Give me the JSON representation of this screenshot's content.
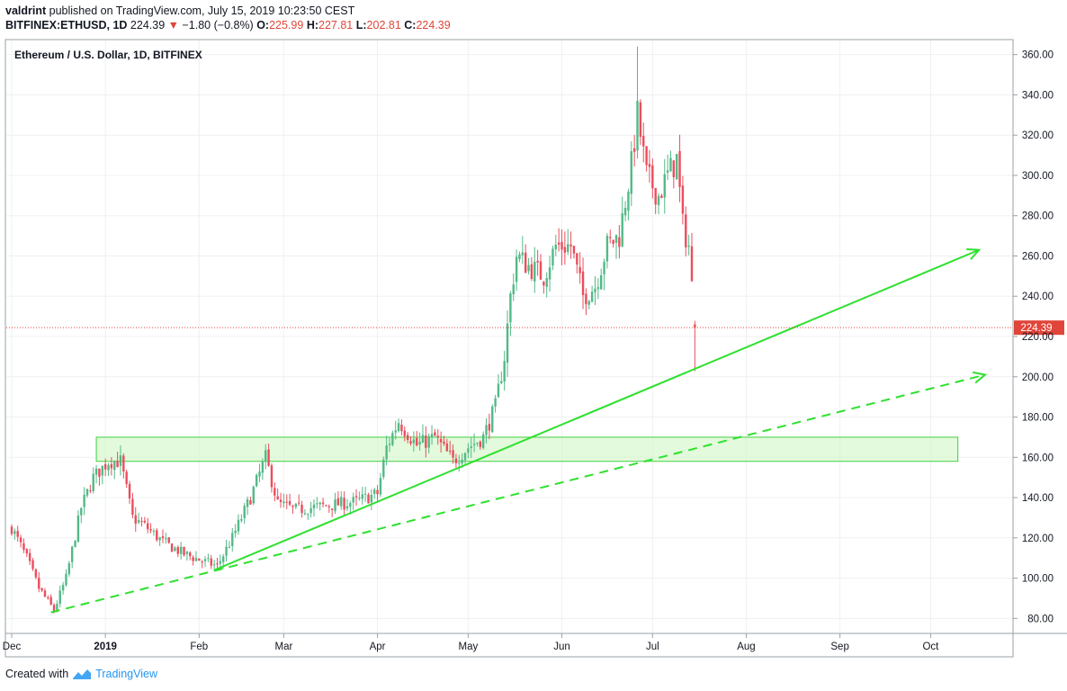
{
  "header": {
    "author": "valdrint",
    "published_text": "published on TradingView.com, July 15, 2019 10:23:50 CEST",
    "symbol": "BITFINEX:ETHUSD, 1D",
    "last": "224.39",
    "arrow": "▼",
    "change": "−1.80 (−0.8%)",
    "o_label": "O:",
    "o_value": "225.99",
    "h_label": "H:",
    "h_value": "227.81",
    "l_label": "L:",
    "l_value": "202.81",
    "c_label": "C:",
    "c_value": "224.39"
  },
  "footer": {
    "created_with": "Created with",
    "brand": "TradingView"
  },
  "chart_data": {
    "type": "candlestick",
    "title": "Ethereum / U.S. Dollar, 1D, BITFINEX",
    "ylim": [
      73,
      367
    ],
    "y_ticks": [
      80,
      100,
      120,
      140,
      160,
      180,
      200,
      220,
      240,
      260,
      280,
      300,
      320,
      340,
      360
    ],
    "x_labels": [
      {
        "label": "Dec",
        "date": "2018-12-01"
      },
      {
        "label": "2019",
        "date": "2019-01-01"
      },
      {
        "label": "Feb",
        "date": "2019-02-01"
      },
      {
        "label": "Mar",
        "date": "2019-03-01"
      },
      {
        "label": "Apr",
        "date": "2019-04-01"
      },
      {
        "label": "May",
        "date": "2019-05-01"
      },
      {
        "label": "Jun",
        "date": "2019-06-01"
      },
      {
        "label": "Jul",
        "date": "2019-07-01"
      },
      {
        "label": "Aug",
        "date": "2019-08-01"
      },
      {
        "label": "Sep",
        "date": "2019-09-01"
      },
      {
        "label": "Oct",
        "date": "2019-10-01"
      }
    ],
    "current_price": {
      "value": 224.39,
      "label": "224.39"
    },
    "colors": {
      "up": "#53b987",
      "down": "#eb4d5c",
      "trend": "#2ee02e",
      "zone_fill": "#d4f7c9",
      "zone_stroke": "#40d040",
      "price_line": "#e0453a"
    },
    "support_zone": {
      "y_low": 158,
      "y_high": 170,
      "x_start": "2018-12-29",
      "x_end": "2019-10-10"
    },
    "trendlines": [
      {
        "style": "solid",
        "arrow": true,
        "start": {
          "date": "2019-02-06",
          "price": 104
        },
        "end": {
          "date": "2019-10-17",
          "price": 263
        }
      },
      {
        "style": "dashed",
        "arrow": true,
        "start": {
          "date": "2018-12-14",
          "price": 83
        },
        "end": {
          "date": "2019-10-19",
          "price": 201
        }
      }
    ],
    "anchors": [
      [
        "2018-12-01",
        125
      ],
      [
        "2018-12-06",
        110
      ],
      [
        "2018-12-10",
        95
      ],
      [
        "2018-12-15",
        84
      ],
      [
        "2018-12-19",
        100
      ],
      [
        "2018-12-24",
        135
      ],
      [
        "2018-12-28",
        150
      ],
      [
        "2019-01-02",
        158
      ],
      [
        "2019-01-06",
        158
      ],
      [
        "2019-01-10",
        130
      ],
      [
        "2019-01-14",
        126
      ],
      [
        "2019-01-20",
        118
      ],
      [
        "2019-01-27",
        112
      ],
      [
        "2019-02-03",
        108
      ],
      [
        "2019-02-07",
        106
      ],
      [
        "2019-02-12",
        120
      ],
      [
        "2019-02-18",
        140
      ],
      [
        "2019-02-23",
        160
      ],
      [
        "2019-02-27",
        137
      ],
      [
        "2019-03-05",
        134
      ],
      [
        "2019-03-15",
        136
      ],
      [
        "2019-03-25",
        138
      ],
      [
        "2019-04-01",
        142
      ],
      [
        "2019-04-04",
        165
      ],
      [
        "2019-04-08",
        178
      ],
      [
        "2019-04-14",
        166
      ],
      [
        "2019-04-20",
        170
      ],
      [
        "2019-04-26",
        158
      ],
      [
        "2019-05-01",
        165
      ],
      [
        "2019-05-06",
        170
      ],
      [
        "2019-05-10",
        185
      ],
      [
        "2019-05-13",
        210
      ],
      [
        "2019-05-15",
        240
      ],
      [
        "2019-05-17",
        260
      ],
      [
        "2019-05-21",
        255
      ],
      [
        "2019-05-26",
        250
      ],
      [
        "2019-05-30",
        265
      ],
      [
        "2019-06-04",
        265
      ],
      [
        "2019-06-08",
        240
      ],
      [
        "2019-06-12",
        245
      ],
      [
        "2019-06-16",
        265
      ],
      [
        "2019-06-20",
        270
      ],
      [
        "2019-06-24",
        305
      ],
      [
        "2019-06-26",
        330
      ],
      [
        "2019-06-29",
        300
      ],
      [
        "2019-07-03",
        290
      ],
      [
        "2019-07-06",
        300
      ],
      [
        "2019-07-09",
        308
      ],
      [
        "2019-07-11",
        275
      ],
      [
        "2019-07-13",
        265
      ],
      [
        "2019-07-15",
        224.39
      ]
    ]
  }
}
